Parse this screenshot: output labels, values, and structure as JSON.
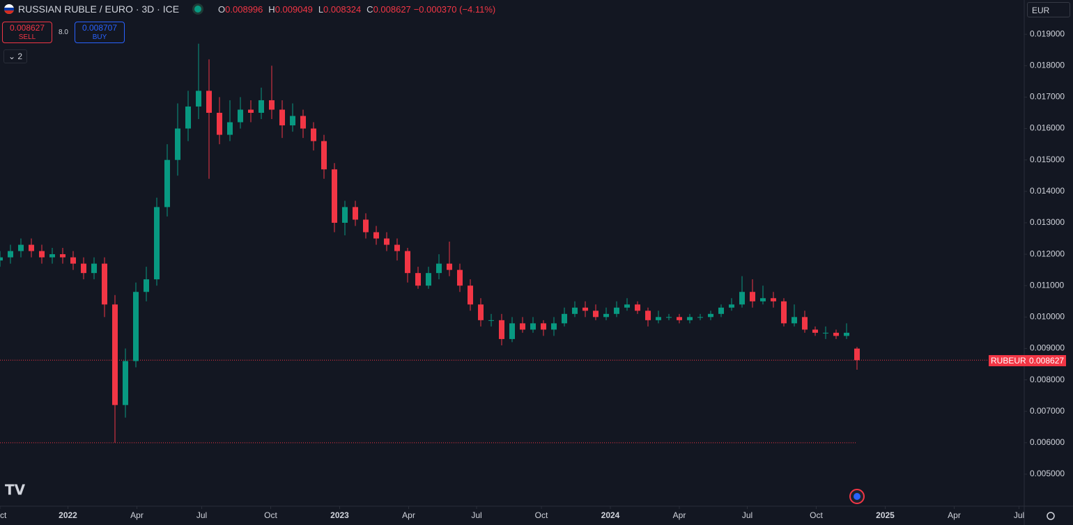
{
  "chart_data": {
    "type": "candlestick",
    "title": "RUSSIAN RUBLE / EURO · 3D · ICE",
    "symbol": "RUBEUR",
    "currency": "EUR",
    "ohlc_keys": [
      "O",
      "H",
      "L",
      "C"
    ],
    "change": "−0.000370 (−4.11%)",
    "trade": {
      "sell_label": "SELL",
      "buy_label": "BUY",
      "buy": "0.008707",
      "spread": "8.0"
    },
    "indicator_count": "2",
    "up_color": "#089981",
    "down_color": "#f23645",
    "xlim": [
      0,
      98
    ],
    "xticks": [
      {
        "value": 0,
        "label": "Oct"
      },
      {
        "value": 6.5,
        "label": "2022"
      },
      {
        "value": 13.1,
        "label": "Apr"
      },
      {
        "value": 19.3,
        "label": "Jul"
      },
      {
        "value": 25.9,
        "label": "Oct"
      },
      {
        "value": 32.5,
        "label": "2023"
      },
      {
        "value": 39.1,
        "label": "Apr"
      },
      {
        "value": 45.6,
        "label": "Jul"
      },
      {
        "value": 51.8,
        "label": "Oct"
      },
      {
        "value": 58.4,
        "label": "2024"
      },
      {
        "value": 65,
        "label": "Apr"
      },
      {
        "value": 71.5,
        "label": "Jul"
      },
      {
        "value": 78.1,
        "label": "Oct"
      },
      {
        "value": 84.7,
        "label": "2025"
      },
      {
        "value": 91.3,
        "label": "Apr"
      },
      {
        "value": 97.5,
        "label": "Jul"
      }
    ],
    "ylim": [
      0.00398,
      0.02009
    ],
    "yticks": [
      {
        "value": 0.019,
        "label": "0.019000"
      },
      {
        "value": 0.018,
        "label": "0.018000"
      },
      {
        "value": 0.017,
        "label": "0.017000"
      },
      {
        "value": 0.016,
        "label": "0.016000"
      },
      {
        "value": 0.015,
        "label": "0.015000"
      },
      {
        "value": 0.014,
        "label": "0.014000"
      },
      {
        "value": 0.013,
        "label": "0.013000"
      },
      {
        "value": 0.012,
        "label": "0.012000"
      },
      {
        "value": 0.011,
        "label": "0.011000"
      },
      {
        "value": 0.01,
        "label": "0.010000"
      },
      {
        "value": 0.009,
        "label": "0.009000"
      },
      {
        "value": 0.008,
        "label": "0.008000"
      },
      {
        "value": 0.007,
        "label": "0.007000"
      },
      {
        "value": 0.006,
        "label": "0.006000"
      },
      {
        "value": 0.005,
        "label": "0.005000"
      }
    ],
    "open": [
      0.0118,
      0.0119,
      0.0121,
      0.0123,
      0.0121,
      0.0119,
      0.012,
      0.0119,
      0.0117,
      0.0114,
      0.0117,
      0.0104,
      0.0072,
      0.0086,
      0.0108,
      0.0112,
      0.0135,
      0.015,
      0.016,
      0.0167,
      0.0172,
      0.0165,
      0.0158,
      0.0162,
      0.0166,
      0.0165,
      0.0169,
      0.0166,
      0.0161,
      0.0164,
      0.016,
      0.0156,
      0.0147,
      0.013,
      0.0135,
      0.0131,
      0.0127,
      0.0125,
      0.0123,
      0.0121,
      0.0114,
      0.011,
      0.0114,
      0.0117,
      0.0115,
      0.011,
      0.0104,
      0.0099,
      0.0099,
      0.0093,
      0.0098,
      0.0096,
      0.0098,
      0.0096,
      0.0098,
      0.0101,
      0.0103,
      0.0102,
      0.01,
      0.0101,
      0.0103,
      0.0104,
      0.0102,
      0.0099,
      0.01,
      0.01,
      0.0099,
      0.01,
      0.01,
      0.0101,
      0.0103,
      0.0104,
      0.0108,
      0.0105,
      0.0106,
      0.0105,
      0.0098,
      0.01,
      0.0096,
      0.0095,
      0.0095,
      0.0094,
      0.008996
    ],
    "high": [
      0.0121,
      0.0123,
      0.0125,
      0.0125,
      0.0123,
      0.0122,
      0.0122,
      0.0121,
      0.0119,
      0.0119,
      0.0119,
      0.0107,
      0.009,
      0.0111,
      0.0116,
      0.0138,
      0.0155,
      0.0168,
      0.0172,
      0.0187,
      0.0182,
      0.017,
      0.0169,
      0.017,
      0.0169,
      0.0173,
      0.018,
      0.0169,
      0.0168,
      0.0166,
      0.0162,
      0.0158,
      0.0149,
      0.0137,
      0.0137,
      0.0133,
      0.0129,
      0.0127,
      0.0125,
      0.0122,
      0.0116,
      0.0116,
      0.012,
      0.0124,
      0.0117,
      0.0112,
      0.0106,
      0.0101,
      0.0101,
      0.01,
      0.01,
      0.01,
      0.0099,
      0.01,
      0.0103,
      0.0105,
      0.0105,
      0.0104,
      0.0103,
      0.0105,
      0.0106,
      0.0105,
      0.0103,
      0.0102,
      0.0101,
      0.0101,
      0.0101,
      0.0101,
      0.0102,
      0.0104,
      0.0106,
      0.0113,
      0.0112,
      0.011,
      0.0108,
      0.0106,
      0.0104,
      0.0102,
      0.0097,
      0.0097,
      0.0096,
      0.0098,
      0.009049
    ],
    "low": [
      0.0116,
      0.0117,
      0.0119,
      0.0119,
      0.0117,
      0.0117,
      0.0117,
      0.0115,
      0.0112,
      0.0112,
      0.01,
      0.006,
      0.0068,
      0.0084,
      0.0105,
      0.011,
      0.0132,
      0.0145,
      0.0156,
      0.0163,
      0.0144,
      0.0155,
      0.0156,
      0.016,
      0.0162,
      0.0163,
      0.0163,
      0.0157,
      0.0159,
      0.0157,
      0.0153,
      0.0144,
      0.0127,
      0.0126,
      0.0129,
      0.0125,
      0.0123,
      0.0121,
      0.0118,
      0.0111,
      0.0109,
      0.0109,
      0.0112,
      0.0113,
      0.0108,
      0.0102,
      0.0097,
      0.0097,
      0.0091,
      0.0092,
      0.0095,
      0.0095,
      0.0094,
      0.0094,
      0.0097,
      0.01,
      0.01,
      0.0099,
      0.0099,
      0.01,
      0.0102,
      0.0101,
      0.0097,
      0.0098,
      0.0099,
      0.0098,
      0.0098,
      0.0099,
      0.0099,
      0.01,
      0.0102,
      0.0103,
      0.0103,
      0.0104,
      0.0103,
      0.0097,
      0.0097,
      0.0095,
      0.0094,
      0.0093,
      0.0093,
      0.0093,
      0.008324
    ],
    "close": [
      0.0119,
      0.0121,
      0.0123,
      0.0121,
      0.0119,
      0.012,
      0.0119,
      0.0117,
      0.0114,
      0.0117,
      0.0104,
      0.0072,
      0.0086,
      0.0108,
      0.0112,
      0.0135,
      0.015,
      0.016,
      0.0167,
      0.0172,
      0.0165,
      0.0158,
      0.0162,
      0.0166,
      0.0165,
      0.0169,
      0.0166,
      0.0161,
      0.0164,
      0.016,
      0.0156,
      0.0147,
      0.013,
      0.0135,
      0.0131,
      0.0127,
      0.0125,
      0.0123,
      0.0121,
      0.0114,
      0.011,
      0.0114,
      0.0117,
      0.0115,
      0.011,
      0.0104,
      0.0099,
      0.0099,
      0.0093,
      0.0098,
      0.0096,
      0.0098,
      0.0096,
      0.0098,
      0.0101,
      0.0103,
      0.0102,
      0.01,
      0.0101,
      0.0103,
      0.0104,
      0.0102,
      0.0099,
      0.01,
      0.01,
      0.0099,
      0.01,
      0.01,
      0.0101,
      0.0103,
      0.0104,
      0.0108,
      0.0105,
      0.0106,
      0.0105,
      0.0098,
      0.01,
      0.0096,
      0.0095,
      0.0095,
      0.0094,
      0.0095,
      0.008627
    ]
  }
}
